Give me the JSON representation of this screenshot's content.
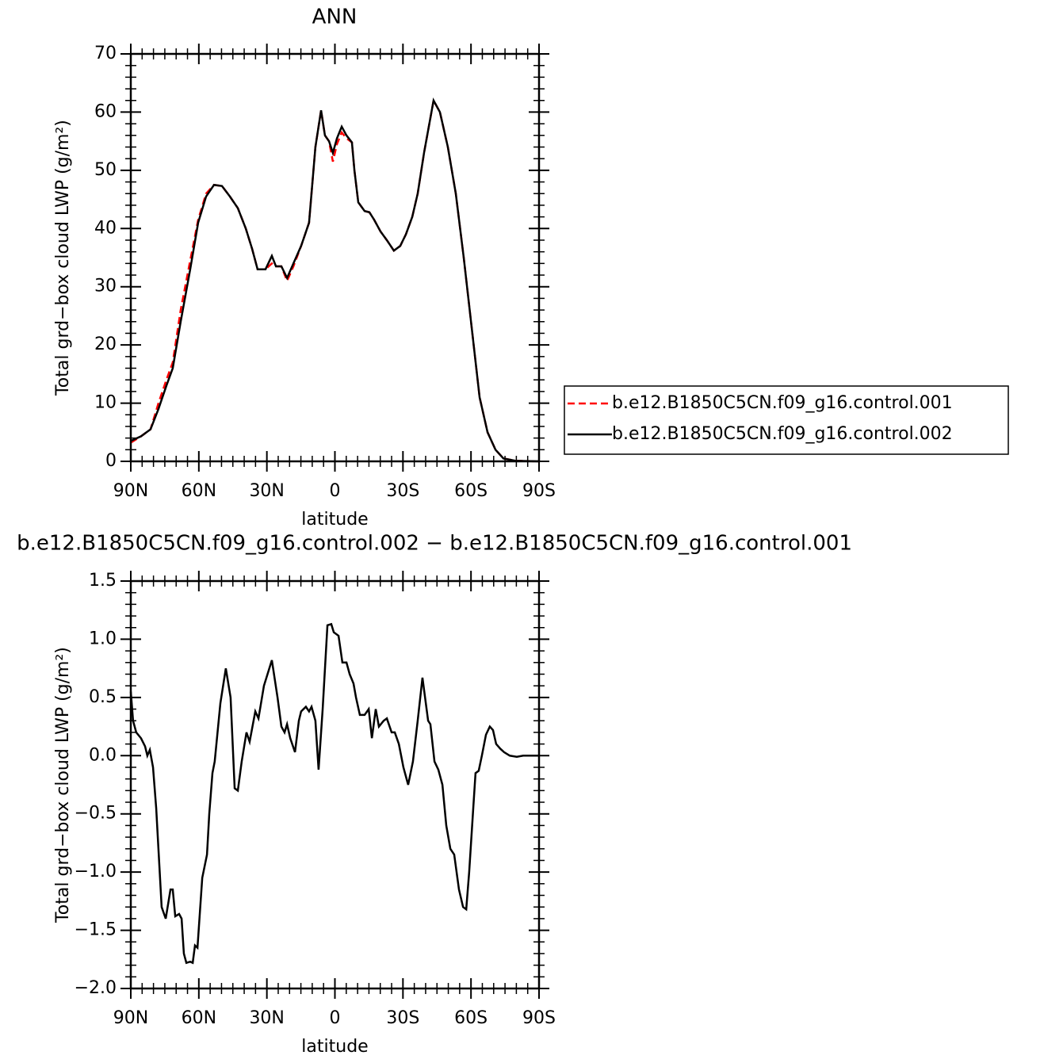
{
  "chart_data": [
    {
      "type": "line",
      "title": "ANN",
      "xlabel": "latitude",
      "ylabel": "Total grd−box cloud LWP (g/m²)",
      "x": [
        90,
        85.5,
        81.3,
        77.8,
        74.3,
        71.5,
        68.0,
        63.8,
        60.3,
        56.8,
        53.3,
        49.8,
        46.3,
        42.8,
        39.3,
        36.5,
        34.1,
        30.6,
        27.8,
        26.0,
        23.6,
        21.1,
        18.3,
        14.9,
        11.4,
        8.6,
        6.1,
        4.4,
        2.6,
        0.9,
        -0.9,
        -3.0,
        -5.1,
        -7.5,
        -8.6,
        -10.3,
        -13.1,
        -15.2,
        -17.3,
        -20.1,
        -22.9,
        -26.0,
        -28.8,
        -31.3,
        -34.1,
        -36.5,
        -39.3,
        -43.5,
        -46.3,
        -49.8,
        -53.3,
        -56.8,
        -60.3,
        -63.8,
        -67.3,
        -70.8,
        -74.3,
        -79.5,
        -90
      ],
      "series": [
        {
          "name": "b.e12.B1850C5CN.f09_g16.control.001",
          "color": "#ff0000",
          "line_style": "dashed",
          "values": [
            3.2,
            4.3,
            5.5,
            10,
            14,
            17,
            26,
            34.5,
            41.5,
            46,
            47.5,
            47.3,
            45.5,
            43.5,
            40,
            36.5,
            33,
            33,
            34,
            33.5,
            33.5,
            31,
            33.5,
            37,
            41,
            54,
            60.3,
            56,
            55,
            51.5,
            54.5,
            56.5,
            55.5,
            54.8,
            50,
            44.5,
            43,
            42.8,
            41.5,
            39.5,
            38,
            36.2,
            37,
            39,
            42,
            46,
            53,
            62,
            60,
            54,
            46,
            35,
            23,
            11,
            5,
            2,
            0.5,
            0.1,
            0
          ]
        },
        {
          "name": "b.e12.B1850C5CN.f09_g16.control.002",
          "color": "#000000",
          "line_style": "solid",
          "values": [
            3.5,
            4.3,
            5.5,
            9,
            13,
            16,
            24,
            33,
            41,
            45.5,
            47.5,
            47.3,
            45.5,
            43.5,
            40,
            36.5,
            33,
            33,
            35.3,
            33.5,
            33.5,
            31.5,
            34,
            37,
            41,
            54,
            60.3,
            56,
            55,
            53,
            55.5,
            57.5,
            56,
            54.8,
            50,
            44.5,
            43,
            42.8,
            41.5,
            39.5,
            38,
            36.2,
            37,
            39,
            42,
            46,
            53,
            62,
            60,
            54,
            46,
            35,
            23,
            11,
            5,
            2,
            0.5,
            0.1,
            0
          ]
        }
      ],
      "xlim": [
        90,
        -90
      ],
      "xticks": [
        {
          "value": 90,
          "label": "90N"
        },
        {
          "value": 60,
          "label": "60N"
        },
        {
          "value": 30,
          "label": "30N"
        },
        0,
        {
          "value": -30,
          "label": "30S"
        },
        {
          "value": -60,
          "label": "60S"
        },
        {
          "value": -90,
          "label": "90S"
        }
      ],
      "ylim": [
        0,
        70
      ],
      "yticks": [
        0,
        10,
        20,
        30,
        40,
        50,
        60,
        70
      ],
      "legend": "right"
    },
    {
      "type": "line",
      "title": "b.e12.B1850C5CN.f09_g16.control.002 − b.e12.B1850C5CN.f09_g16.control.001",
      "xlabel": "latitude",
      "ylabel": "Total grd−box cloud LWP (g/m²)",
      "x": [
        90,
        89.0,
        87.6,
        85.5,
        83.7,
        82.7,
        81.6,
        80.2,
        78.8,
        76.4,
        74.6,
        72.5,
        71.5,
        70.4,
        68.7,
        67.6,
        66.6,
        65.5,
        63.8,
        62.7,
        61.7,
        60.6,
        58.5,
        56.4,
        55.4,
        54.0,
        53.0,
        50.5,
        48.1,
        46.0,
        44.2,
        42.8,
        41.1,
        39.0,
        37.6,
        35.1,
        33.7,
        31.3,
        27.8,
        25.3,
        23.6,
        22.2,
        21.1,
        19.7,
        17.6,
        15.9,
        14.9,
        12.8,
        11.4,
        10.3,
        8.6,
        7.2,
        5.4,
        3.3,
        1.6,
        0.5,
        -1.6,
        -3.3,
        -5.1,
        -6.5,
        -8.2,
        -9.3,
        -11.0,
        -13.1,
        -14.9,
        -16.3,
        -18.0,
        -19.4,
        -21.5,
        -22.9,
        -25.0,
        -26.4,
        -28.2,
        -30.2,
        -32.3,
        -34.4,
        -36.5,
        -38.6,
        -41.1,
        -42.1,
        -43.9,
        -45.6,
        -47.4,
        -49.1,
        -50.9,
        -52.6,
        -54.7,
        -56.5,
        -57.9,
        -59.2,
        -61.0,
        -62.0,
        -63.4,
        -64.8,
        -66.6,
        -68.3,
        -69.7,
        -71.1,
        -72.9,
        -74.6,
        -77.1,
        -80.2,
        -83.0,
        -90
      ],
      "values": [
        0.55,
        0.3,
        0.2,
        0.15,
        0.08,
        0.0,
        0.05,
        -0.1,
        -0.45,
        -1.3,
        -1.4,
        -1.15,
        -1.15,
        -1.38,
        -1.36,
        -1.4,
        -1.7,
        -1.78,
        -1.77,
        -1.78,
        -1.63,
        -1.65,
        -1.05,
        -0.85,
        -0.5,
        -0.15,
        -0.05,
        0.45,
        0.75,
        0.5,
        -0.28,
        -0.3,
        -0.05,
        0.2,
        0.12,
        0.38,
        0.32,
        0.6,
        0.82,
        0.5,
        0.25,
        0.2,
        0.27,
        0.15,
        0.03,
        0.3,
        0.38,
        0.42,
        0.38,
        0.42,
        0.3,
        -0.12,
        0.4,
        1.12,
        1.13,
        1.06,
        1.03,
        0.8,
        0.8,
        0.7,
        0.62,
        0.5,
        0.35,
        0.35,
        0.4,
        0.15,
        0.4,
        0.25,
        0.3,
        0.32,
        0.2,
        0.2,
        0.1,
        -0.1,
        -0.25,
        -0.05,
        0.3,
        0.67,
        0.3,
        0.27,
        -0.05,
        -0.12,
        -0.25,
        -0.6,
        -0.8,
        -0.85,
        -1.15,
        -1.3,
        -1.32,
        -1.0,
        -0.45,
        -0.15,
        -0.13,
        0.0,
        0.18,
        0.25,
        0.22,
        0.1,
        0.06,
        0.03,
        0.0,
        -0.01,
        0.0,
        0.0
      ],
      "color": "#000000",
      "xlim": [
        90,
        -90
      ],
      "xticks": [
        {
          "value": 90,
          "label": "90N"
        },
        {
          "value": 60,
          "label": "60N"
        },
        {
          "value": 30,
          "label": "30N"
        },
        0,
        {
          "value": -30,
          "label": "30S"
        },
        {
          "value": -60,
          "label": "60S"
        },
        {
          "value": -90,
          "label": "90S"
        }
      ],
      "ylim": [
        -2,
        1.5
      ],
      "yticks": [
        {
          "value": -2,
          "label": "−2.0"
        },
        {
          "value": -1.5,
          "label": "−1.5"
        },
        {
          "value": -1,
          "label": "−1.0"
        },
        {
          "value": -0.5,
          "label": "−0.5"
        },
        {
          "value": 0,
          "label": "0.0"
        },
        0.5,
        {
          "value": 1,
          "label": "1.0"
        },
        1.5
      ]
    }
  ]
}
